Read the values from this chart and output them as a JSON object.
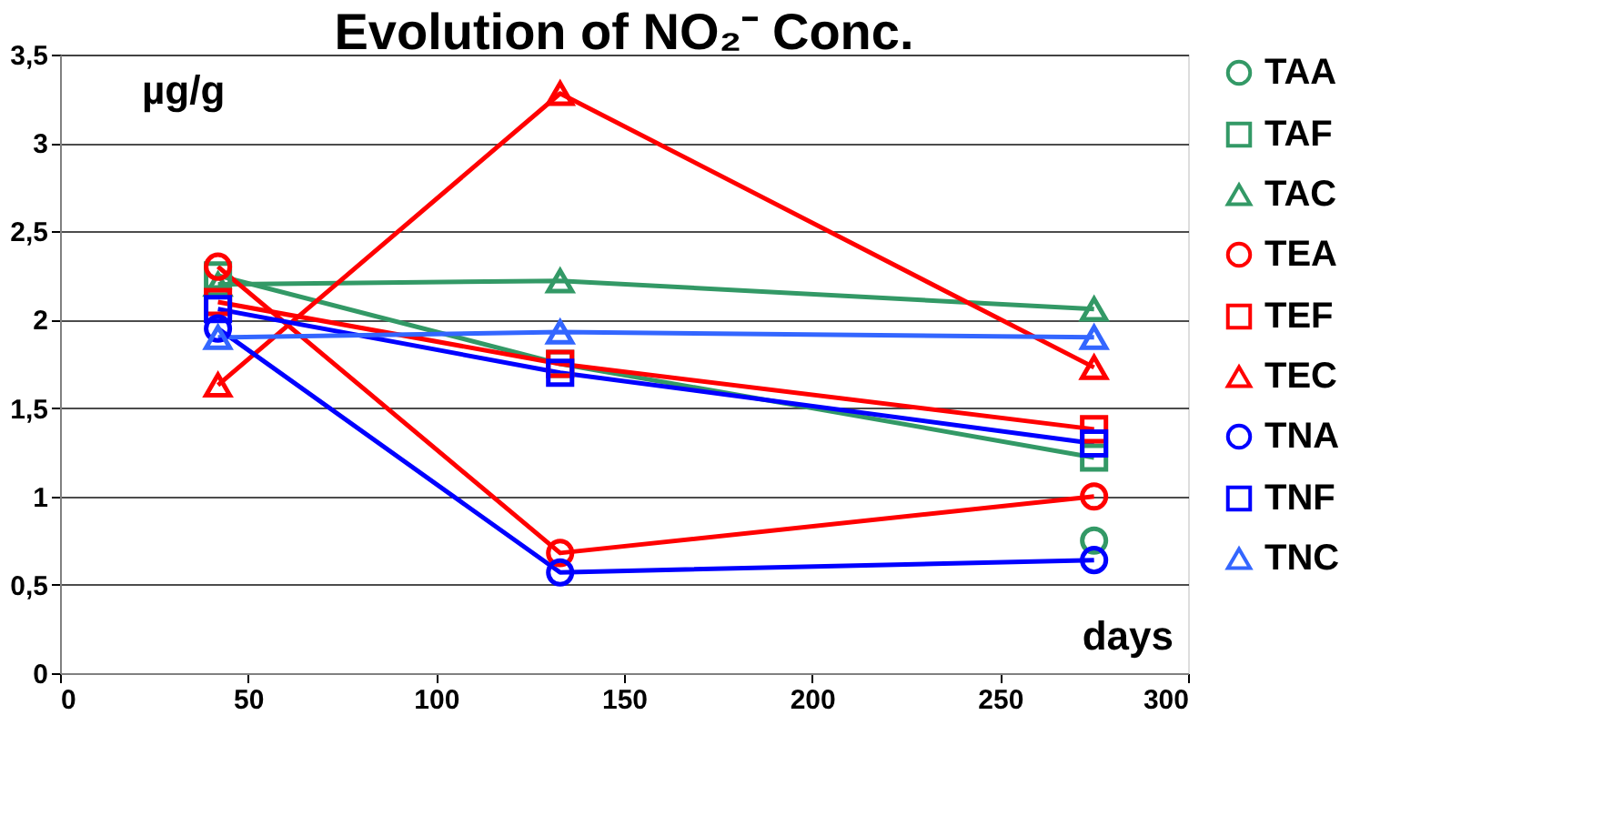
{
  "chart_data": {
    "type": "line",
    "title": "Evolution of NO₂⁻ Conc.",
    "xlabel": "days",
    "ylabel": "µg/g",
    "x": [
      42,
      133,
      275
    ],
    "series": [
      {
        "name": "TAA",
        "color": "#339966",
        "marker": "circle",
        "values": [
          null,
          null,
          0.75
        ]
      },
      {
        "name": "TAF",
        "color": "#339966",
        "marker": "square",
        "values": [
          2.25,
          1.75,
          1.22
        ]
      },
      {
        "name": "TAC",
        "color": "#339966",
        "marker": "triangle",
        "values": [
          2.2,
          2.22,
          2.06
        ]
      },
      {
        "name": "TEA",
        "color": "#ff0000",
        "marker": "circle",
        "values": [
          2.3,
          0.68,
          1.0
        ]
      },
      {
        "name": "TEF",
        "color": "#ff0000",
        "marker": "square",
        "values": [
          2.1,
          1.75,
          1.38
        ]
      },
      {
        "name": "TEC",
        "color": "#ff0000",
        "marker": "triangle",
        "values": [
          1.63,
          3.28,
          1.73
        ]
      },
      {
        "name": "TNA",
        "color": "#0000ff",
        "marker": "circle",
        "values": [
          1.95,
          0.57,
          0.64
        ]
      },
      {
        "name": "TNF",
        "color": "#0000ff",
        "marker": "square",
        "values": [
          2.06,
          1.7,
          1.3
        ]
      },
      {
        "name": "TNC",
        "color": "#3366ff",
        "marker": "triangle",
        "values": [
          1.9,
          1.93,
          1.9
        ]
      }
    ],
    "xlim": [
      0,
      300
    ],
    "xticks": [
      0,
      50,
      100,
      150,
      200,
      250,
      300
    ],
    "ylim": [
      0,
      3.5
    ],
    "yticks": [
      0,
      {
        "value": 0.5,
        "label": "0,5"
      },
      1,
      {
        "value": 1.5,
        "label": "1,5"
      },
      2,
      {
        "value": 2.5,
        "label": "2,5"
      },
      3,
      {
        "value": 3.5,
        "label": "3,5"
      }
    ],
    "grid": "y",
    "legend": "right",
    "line_style": "solid"
  }
}
